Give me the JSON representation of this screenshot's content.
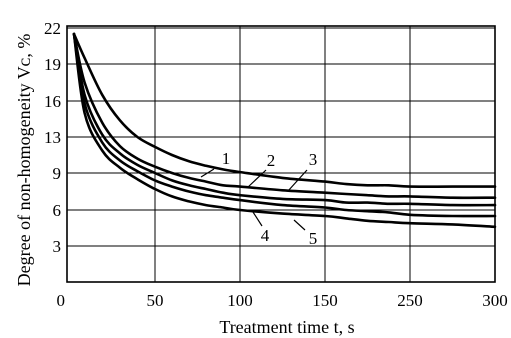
{
  "chart_data": {
    "type": "line",
    "xlabel": "Treatment time t, s",
    "ylabel": "Degree of non-homogeneity Vᴄ, %",
    "x_ticks": [
      "0",
      "50",
      "100",
      "150",
      "250",
      "300"
    ],
    "y_ticks": [
      "3",
      "6",
      "9",
      "13",
      "16",
      "19",
      "22"
    ],
    "grid": true,
    "series": [
      {
        "name": "1",
        "x": [
          4,
          10,
          20,
          30,
          40,
          50,
          60,
          70,
          80,
          90,
          100,
          125,
          150,
          175,
          200,
          225,
          250,
          275,
          300
        ],
        "y": [
          21.5,
          19.5,
          16.5,
          14.4,
          13.0,
          11.9,
          11.0,
          10.3,
          9.8,
          9.4,
          9.1,
          8.6,
          8.3,
          8.1,
          8.0,
          8.0,
          7.9,
          7.9,
          7.9
        ]
      },
      {
        "name": "2",
        "x": [
          4,
          10,
          20,
          30,
          40,
          50,
          60,
          70,
          80,
          90,
          100,
          125,
          150,
          175,
          200,
          225,
          250,
          275,
          300
        ],
        "y": [
          21.5,
          17.5,
          14.2,
          12.0,
          10.6,
          9.7,
          9.0,
          8.6,
          8.3,
          8.0,
          7.9,
          7.6,
          7.4,
          7.3,
          7.2,
          7.1,
          7.1,
          7.0,
          7.0
        ]
      },
      {
        "name": "3",
        "x": [
          4,
          10,
          20,
          30,
          40,
          50,
          60,
          70,
          80,
          90,
          100,
          125,
          150,
          175,
          200,
          225,
          250,
          275,
          300
        ],
        "y": [
          21.5,
          16.5,
          13.2,
          11.2,
          9.9,
          9.0,
          8.4,
          8.0,
          7.7,
          7.4,
          7.2,
          6.9,
          6.8,
          6.6,
          6.6,
          6.5,
          6.5,
          6.4,
          6.4
        ]
      },
      {
        "name": "4",
        "x": [
          4,
          10,
          20,
          30,
          40,
          50,
          60,
          70,
          80,
          90,
          100,
          125,
          150,
          175,
          200,
          225,
          250,
          275,
          300
        ],
        "y": [
          21.5,
          15.8,
          12.4,
          10.4,
          9.2,
          8.4,
          7.9,
          7.5,
          7.2,
          7.0,
          6.8,
          6.4,
          6.2,
          6.0,
          5.9,
          5.8,
          5.6,
          5.5,
          5.5
        ]
      },
      {
        "name": "5",
        "x": [
          4,
          10,
          20,
          30,
          40,
          50,
          60,
          70,
          80,
          90,
          100,
          125,
          150,
          175,
          200,
          225,
          250,
          275,
          300
        ],
        "y": [
          21.5,
          15.0,
          11.5,
          9.6,
          8.5,
          7.7,
          7.1,
          6.7,
          6.4,
          6.2,
          6.0,
          5.7,
          5.5,
          5.3,
          5.1,
          5.0,
          4.9,
          4.8,
          4.6
        ]
      }
    ]
  }
}
